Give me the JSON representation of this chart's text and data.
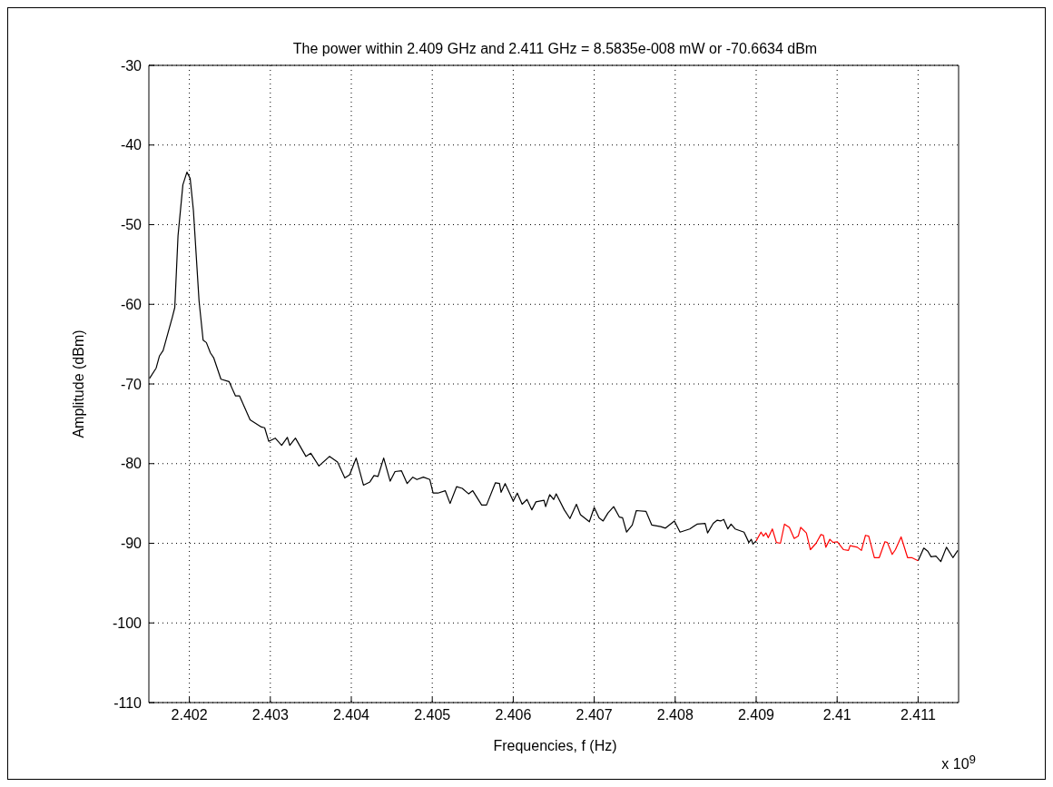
{
  "chart_data": {
    "type": "line",
    "title": "The power within 2.409 GHz and 2.411 GHz = 8.5835e-008 mW or -70.6634 dBm",
    "xlabel": "Frequencies, f (Hz)",
    "ylabel": "Amplitude (dBm)",
    "annotations": [
      "x 10$^{9}$"
    ],
    "xlim": [
      2.4015,
      2.4115
    ],
    "xticks": [
      2.402,
      2.403,
      2.404,
      2.405,
      2.406,
      2.407,
      2.408,
      2.409,
      2.41,
      2.411
    ],
    "ylim": [
      -110,
      -30
    ],
    "yticks": [
      -110,
      -100,
      -90,
      -80,
      -70,
      -60,
      -50,
      -40,
      -30
    ],
    "grid": true,
    "series": [
      {
        "color": "#000000",
        "x": [
          2.401508,
          2.40159,
          2.40163,
          2.401676,
          2.40179,
          2.40182,
          2.40186,
          2.40192,
          2.40197,
          2.40201,
          2.40205,
          2.40212,
          2.40217,
          2.40221,
          2.40226,
          2.4023,
          2.40239,
          2.40249,
          2.40257,
          2.40262,
          2.40275,
          2.40289,
          2.40293,
          2.40298,
          2.40306,
          2.40314,
          2.40321,
          2.40324,
          2.40331,
          2.40344,
          2.4035,
          2.4036,
          2.40373,
          2.40383,
          2.40392,
          2.40398,
          2.40406,
          2.40415,
          2.40423,
          2.40428,
          2.40433,
          2.4044,
          2.40448,
          2.40454,
          2.40462,
          2.40469,
          2.40476,
          2.40481,
          2.40489,
          2.40497,
          2.40501,
          2.40507,
          2.40516,
          2.40522,
          2.4053,
          2.40537,
          2.40545,
          2.4055,
          2.40561,
          2.40567,
          2.40578,
          2.40583,
          2.40585,
          2.4059,
          2.406,
          2.40605,
          2.40611,
          2.40617,
          2.40623,
          2.40628,
          2.40638,
          2.4064,
          2.40645,
          2.4065,
          2.40653,
          2.40663,
          2.4067,
          2.40678,
          2.40683,
          2.40694,
          2.407,
          2.40706,
          2.40711,
          2.40717,
          2.40724,
          2.40731,
          2.40735,
          2.4074,
          2.40747,
          2.40752,
          2.40764,
          2.40771,
          2.40782,
          2.40788,
          2.40799,
          2.40806,
          2.40818,
          2.40827,
          2.40837,
          2.4084,
          2.40847,
          2.40852,
          2.40856,
          2.4086,
          2.40865,
          2.40869,
          2.40874,
          2.40885,
          2.40891,
          2.40894,
          2.40896,
          2.409,
          2.41,
          2.411,
          2.41107,
          2.41112,
          2.41116,
          2.41122,
          2.41128,
          2.41135,
          2.41143,
          2.41149
        ],
        "values": [
          -69.3,
          -68.0,
          -66.5,
          -65.8,
          -61.6,
          -60.4,
          -51.4,
          -45.0,
          -43.4,
          -44.2,
          -48.2,
          -59.6,
          -64.5,
          -64.8,
          -66.1,
          -66.7,
          -69.4,
          -69.7,
          -71.5,
          -71.5,
          -74.5,
          -75.4,
          -75.5,
          -77.2,
          -76.8,
          -77.7,
          -76.7,
          -77.7,
          -76.8,
          -79.1,
          -78.7,
          -80.3,
          -79.1,
          -79.8,
          -81.8,
          -81.4,
          -79.3,
          -82.7,
          -82.3,
          -81.5,
          -81.6,
          -79.3,
          -82.2,
          -81.0,
          -80.9,
          -82.5,
          -81.7,
          -82.0,
          -81.7,
          -82.0,
          -83.7,
          -83.7,
          -83.4,
          -85.0,
          -82.9,
          -83.1,
          -83.8,
          -83.4,
          -85.2,
          -85.2,
          -82.4,
          -82.5,
          -83.6,
          -82.5,
          -84.7,
          -83.7,
          -85.1,
          -84.5,
          -85.8,
          -84.8,
          -84.6,
          -85.4,
          -83.9,
          -84.5,
          -83.8,
          -85.8,
          -86.9,
          -85.1,
          -86.4,
          -87.3,
          -85.5,
          -86.8,
          -87.2,
          -86.2,
          -85.4,
          -86.7,
          -86.8,
          -88.6,
          -87.7,
          -85.9,
          -86.0,
          -87.7,
          -87.9,
          -88.1,
          -87.2,
          -88.6,
          -88.2,
          -87.6,
          -87.5,
          -88.7,
          -87.5,
          -87.1,
          -87.2,
          -87.0,
          -88.2,
          -87.6,
          -88.2,
          -88.6,
          -89.9,
          -89.5,
          -90.1,
          -89.7,
          null,
          -92.2,
          -90.6,
          -91.0,
          -91.7,
          -91.6,
          -92.3,
          -90.5,
          -91.8,
          -90.9
        ]
      },
      {
        "color": "#ff0000",
        "x": [
          2.409,
          2.40906,
          2.40909,
          2.40912,
          2.40915,
          2.4092,
          2.40925,
          2.4093,
          2.40935,
          2.40941,
          2.40947,
          2.40952,
          2.40955,
          2.40962,
          2.40967,
          2.40974,
          2.4098,
          2.40983,
          2.40986,
          2.40991,
          2.40995,
          2.41,
          2.41008,
          2.41014,
          2.41016,
          2.41025,
          2.4103,
          2.41035,
          2.41039,
          2.41046,
          2.41052,
          2.41059,
          2.41062,
          2.41068,
          2.41072,
          2.41079,
          2.41087,
          2.41092,
          2.411
        ],
        "values": [
          -89.7,
          -88.6,
          -89.1,
          -88.7,
          -89.3,
          -88.2,
          -89.9,
          -90.0,
          -87.6,
          -88.0,
          -89.4,
          -89.1,
          -88.0,
          -88.7,
          -90.8,
          -90.0,
          -88.9,
          -89.0,
          -90.5,
          -89.5,
          -89.9,
          -89.8,
          -90.8,
          -90.9,
          -90.3,
          -90.5,
          -90.9,
          -89.0,
          -89.1,
          -91.8,
          -91.8,
          -89.8,
          -89.9,
          -91.4,
          -90.8,
          -89.2,
          -91.8,
          -91.8,
          -92.2
        ]
      }
    ]
  }
}
